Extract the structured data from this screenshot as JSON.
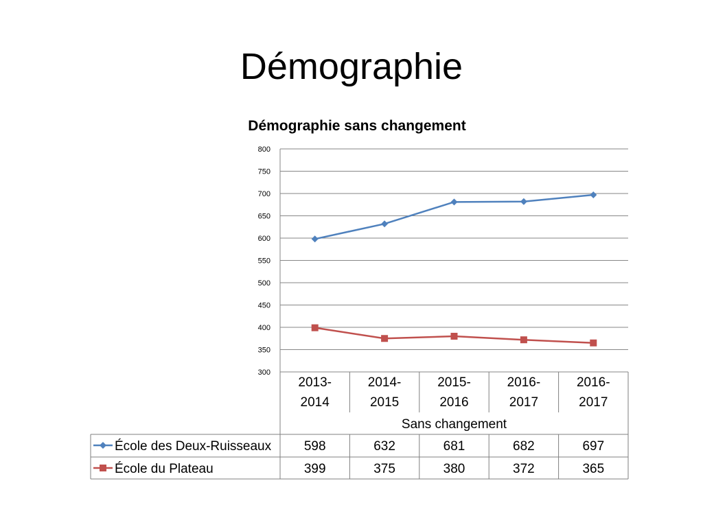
{
  "slide": {
    "title": "Démographie"
  },
  "colors": {
    "series1": "#4f81bd",
    "series2": "#c0504d",
    "grid": "#868686",
    "table_border": "#7f7f7f"
  },
  "chart_data": {
    "type": "line",
    "title": "Démographie sans changement",
    "categories": [
      [
        "2013-",
        "2014"
      ],
      [
        "2014-",
        "2015"
      ],
      [
        "2015-",
        "2016"
      ],
      [
        "2016-",
        "2017"
      ],
      [
        "2016-",
        "2017"
      ]
    ],
    "group_label": "Sans changement",
    "ylim": [
      300,
      800
    ],
    "yticks": [
      800,
      750,
      700,
      650,
      600,
      550,
      500,
      450,
      400,
      350,
      300
    ],
    "grid": true,
    "legend": "data-table",
    "series": [
      {
        "name": "École des Deux-Ruisseaux",
        "values": [
          598,
          632,
          681,
          682,
          697
        ],
        "marker": "diamond",
        "color": "#4f81bd"
      },
      {
        "name": "École du Plateau",
        "values": [
          399,
          375,
          380,
          372,
          365
        ],
        "marker": "square",
        "color": "#c0504d"
      }
    ]
  }
}
